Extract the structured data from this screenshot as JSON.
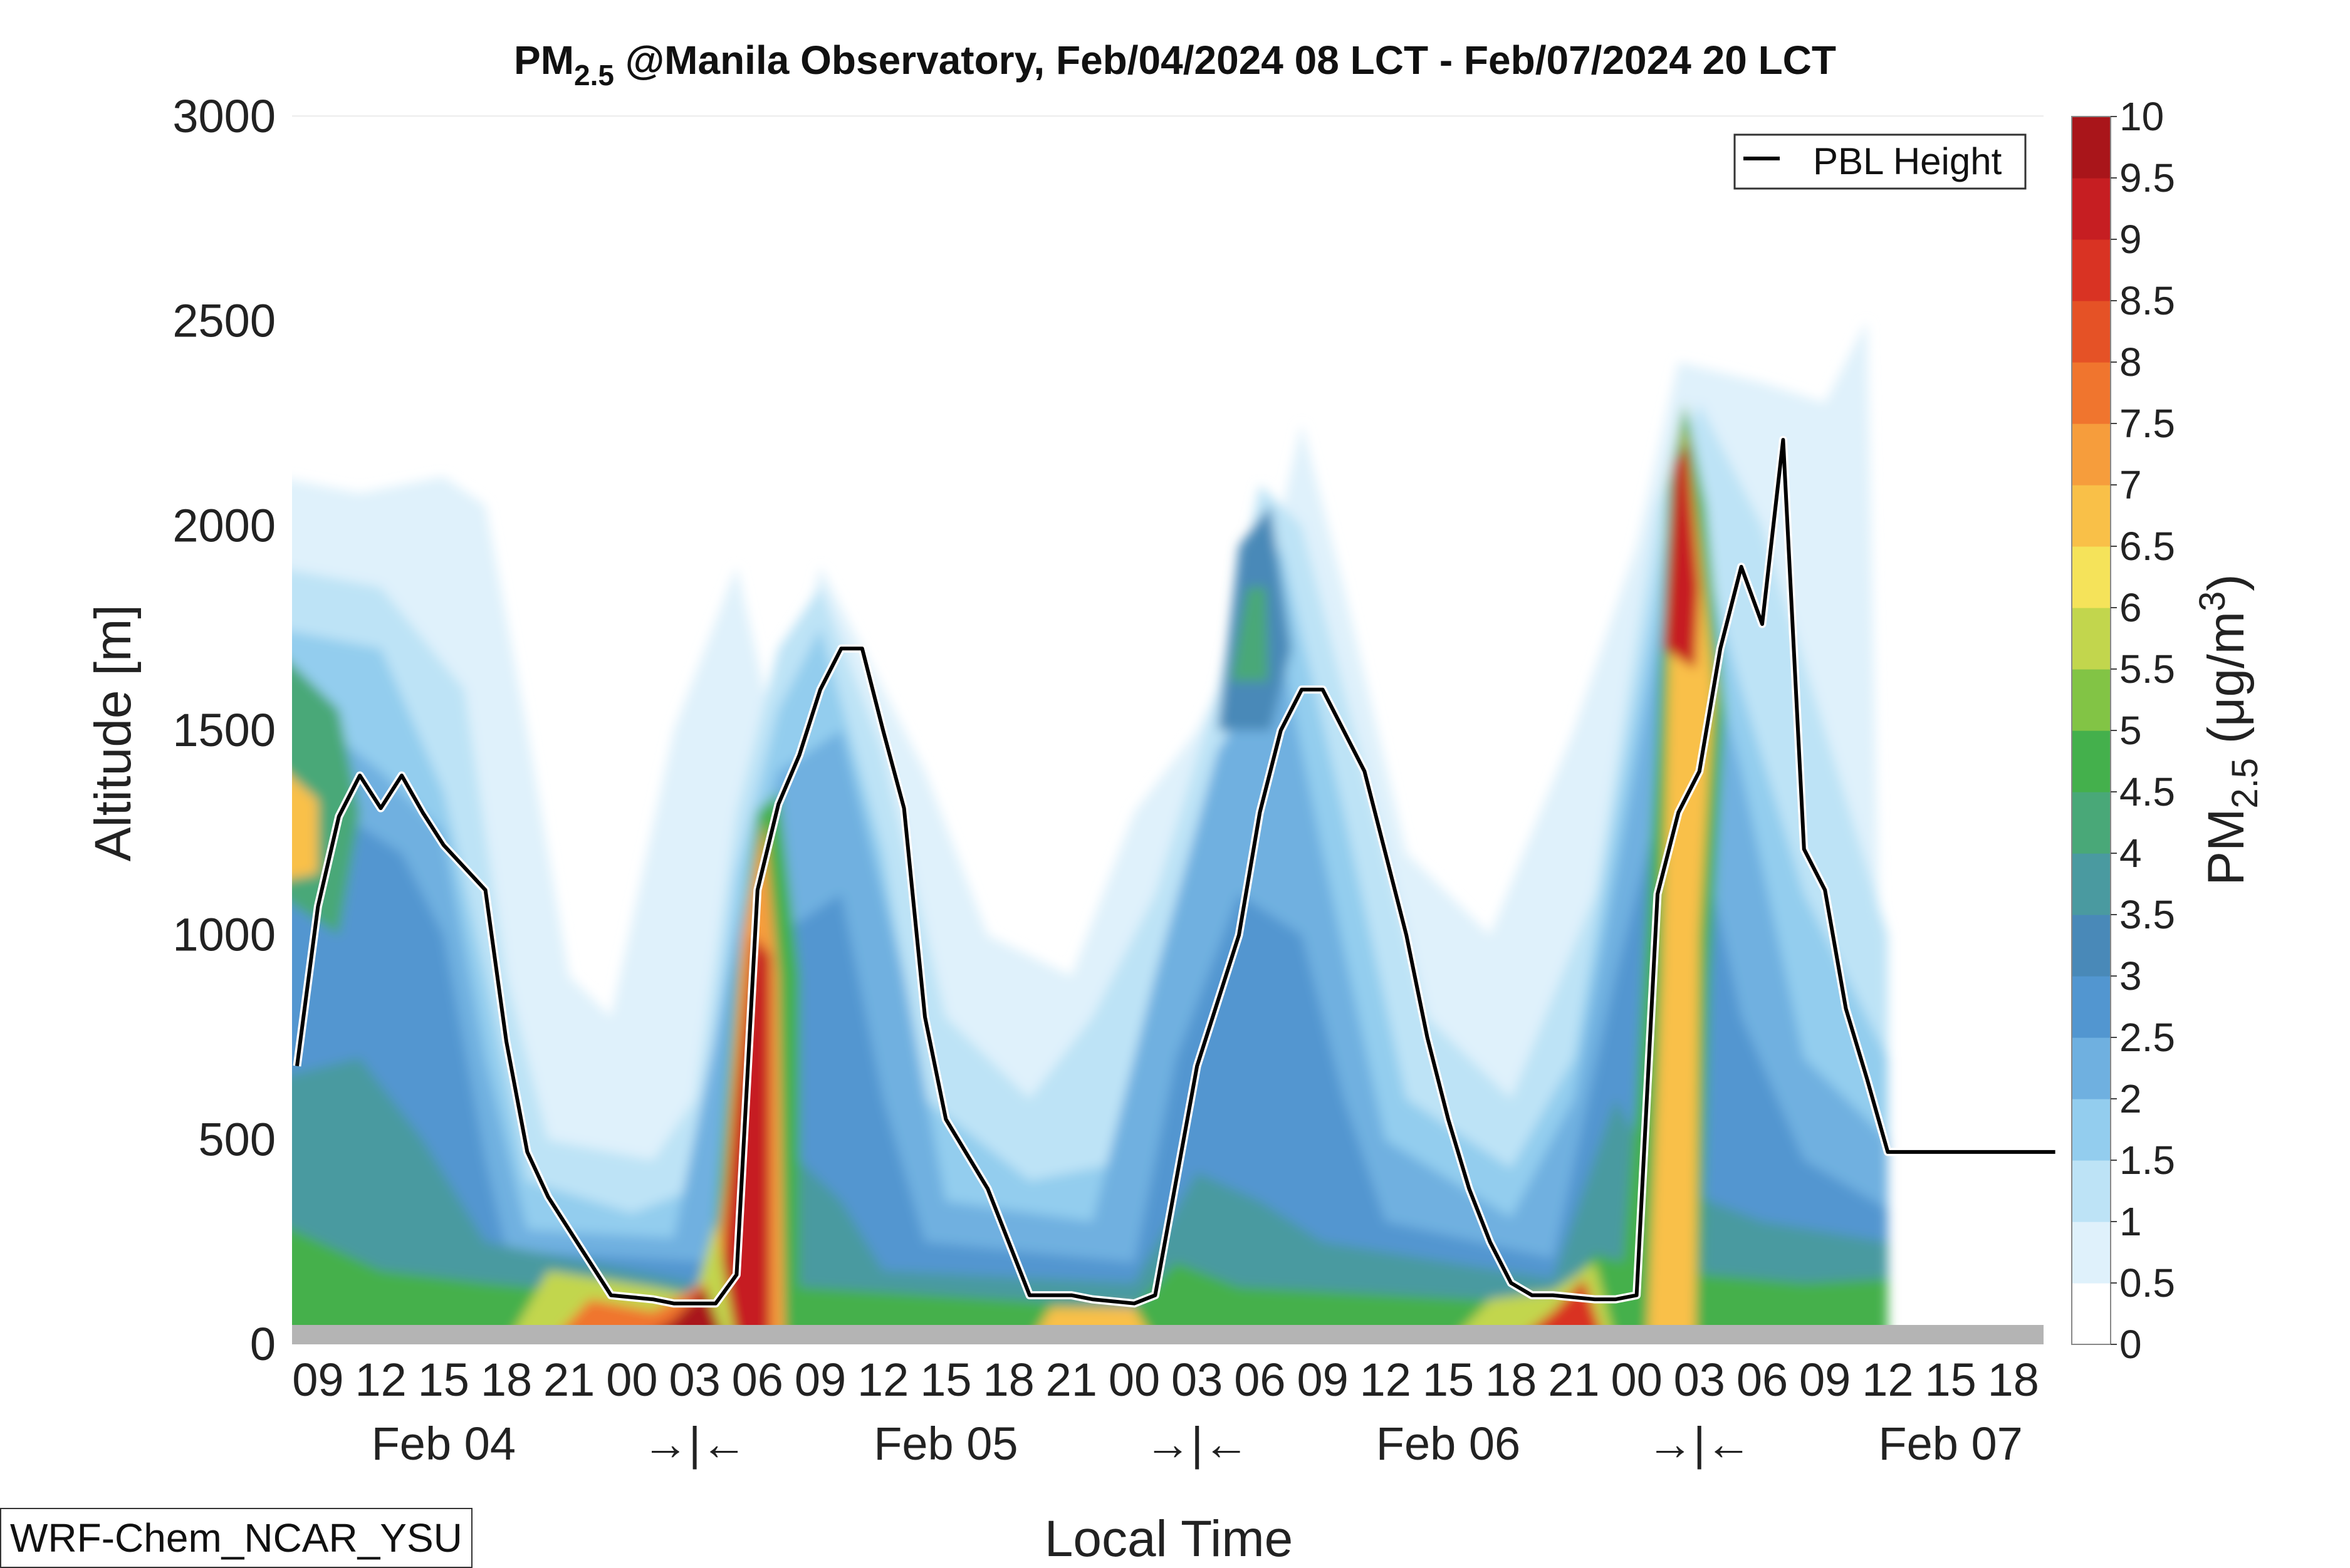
{
  "title": {
    "main": "PM",
    "sub": "2.5",
    "rest": " @Manila Observatory, Feb/04/2024 08 LCT - Feb/07/2024 20 LCT"
  },
  "axes": {
    "ylabel": "Altitude [m]",
    "xlabel": "Local Time",
    "ylim": [
      0,
      3000
    ],
    "yticks": [
      0,
      500,
      1000,
      1500,
      2000,
      2500,
      3000
    ],
    "hours": [
      "09",
      "12",
      "15",
      "18",
      "21",
      "00",
      "03",
      "06",
      "09",
      "12",
      "15",
      "18",
      "21",
      "00",
      "03",
      "06",
      "09",
      "12",
      "15",
      "18",
      "21",
      "00",
      "03",
      "06",
      "09",
      "12",
      "15",
      "18"
    ],
    "day_labels": [
      "Feb 04",
      "→|←",
      "Feb 05",
      "→|←",
      "Feb 06",
      "→|←",
      "Feb 07"
    ]
  },
  "legend": {
    "label": "PBL Height",
    "position": "top-right"
  },
  "colorbar": {
    "label_main": "PM",
    "label_sub": "2.5",
    "label_unit": " (μg/m",
    "label_sup": "3",
    "label_close": ")",
    "ticks": [
      "0",
      "0.5",
      "1",
      "1.5",
      "2",
      "2.5",
      "3",
      "3.5",
      "4",
      "4.5",
      "5",
      "5.5",
      "6",
      "6.5",
      "7",
      "7.5",
      "8",
      "8.5",
      "9",
      "9.5",
      "10"
    ],
    "colors": [
      "#ffffff",
      "#dff1fb",
      "#bde3f6",
      "#93cdee",
      "#6fb0e0",
      "#5296d0",
      "#4989b8",
      "#4a9aa0",
      "#49a878",
      "#44b04c",
      "#82c445",
      "#c2d64d",
      "#f5e35a",
      "#f9c048",
      "#f69d3c",
      "#f0752e",
      "#e55226",
      "#d93323",
      "#c61e22",
      "#a9151a"
    ]
  },
  "chart_data": {
    "type": "heatmap",
    "title": "PM2.5 @Manila Observatory, Feb/04/2024 08 LCT - Feb/07/2024 20 LCT",
    "xlabel": "Local Time",
    "ylabel": "Altitude [m]",
    "ylim": [
      0,
      3000
    ],
    "time_range": [
      "Feb/04/2024 08 LCT",
      "Feb/07/2024 20 LCT"
    ],
    "series": [
      {
        "name": "PBL Height",
        "type": "line",
        "hours_since_start": [
          0,
          1,
          2,
          3,
          4,
          5,
          6,
          7,
          9,
          10,
          11,
          12,
          15,
          17,
          18,
          20,
          21,
          22,
          23,
          24,
          25,
          26,
          27,
          28,
          29,
          30,
          31,
          33,
          34,
          35,
          36,
          37,
          38,
          40,
          41,
          43,
          45,
          46,
          47,
          48,
          49,
          50,
          51,
          52,
          53,
          54,
          55,
          56,
          57,
          58,
          59,
          60,
          61,
          62,
          63,
          64,
          65,
          66,
          67,
          68,
          69,
          70,
          71,
          72,
          73,
          74,
          75,
          76,
          77,
          78,
          79,
          80,
          81,
          82,
          83,
          84
        ],
        "values": [
          680,
          1070,
          1290,
          1390,
          1310,
          1390,
          1300,
          1220,
          1110,
          740,
          470,
          360,
          120,
          110,
          100,
          100,
          170,
          1110,
          1320,
          1440,
          1600,
          1700,
          1700,
          1500,
          1310,
          800,
          550,
          380,
          250,
          120,
          120,
          120,
          110,
          100,
          120,
          680,
          1000,
          1300,
          1500,
          1600,
          1600,
          1500,
          1400,
          1200,
          1000,
          750,
          550,
          380,
          250,
          150,
          120,
          120,
          115,
          110,
          110,
          120,
          1100,
          1300,
          1400,
          1700,
          1900,
          1760,
          2210,
          1210,
          1110,
          820,
          650,
          470,
          470,
          470,
          470,
          470,
          470,
          470,
          470,
          470
        ]
      }
    ],
    "colorbar": {
      "label": "PM2.5 (μg/m3)",
      "min": 0,
      "max": 10,
      "step": 0.5
    },
    "footer": "WRF-Chem_NCAR_YSU"
  },
  "footer": "WRF-Chem_NCAR_YSU"
}
